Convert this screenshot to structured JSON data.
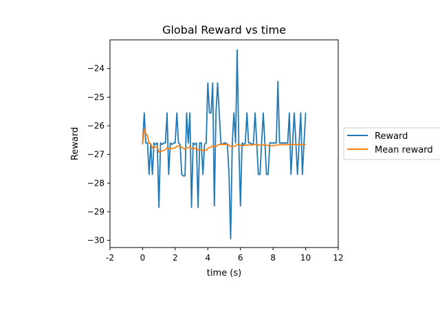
{
  "chart_data": {
    "type": "line",
    "title": "Global Reward vs time",
    "xlabel": "time (s)",
    "ylabel": "Reward",
    "xlim": [
      -2,
      12
    ],
    "ylim": [
      -30.25,
      -23.0
    ],
    "x_ticks": [
      -2,
      0,
      2,
      4,
      6,
      8,
      10,
      12
    ],
    "x_tick_labels": [
      "-2",
      "0",
      "2",
      "4",
      "6",
      "8",
      "10",
      "12"
    ],
    "y_ticks": [
      -30,
      -29,
      -28,
      -27,
      -26,
      -25,
      -24
    ],
    "y_tick_labels": [
      "−30",
      "−29",
      "−28",
      "−27",
      "−26",
      "−25",
      "−24"
    ],
    "grid": false,
    "legend_position": "right-outside",
    "series": [
      {
        "name": "Reward",
        "color": "#1f77b4",
        "x": [
          0.0,
          0.1,
          0.2,
          0.3,
          0.4,
          0.5,
          0.6,
          0.7,
          0.8,
          0.9,
          1.0,
          1.1,
          1.2,
          1.3,
          1.4,
          1.5,
          1.6,
          1.7,
          1.8,
          1.9,
          2.0,
          2.1,
          2.2,
          2.3,
          2.4,
          2.5,
          2.6,
          2.7,
          2.8,
          2.9,
          3.0,
          3.1,
          3.2,
          3.3,
          3.4,
          3.5,
          3.6,
          3.7,
          3.8,
          3.9,
          4.0,
          4.1,
          4.2,
          4.3,
          4.4,
          4.5,
          4.6,
          4.7,
          4.8,
          4.9,
          5.0,
          5.1,
          5.2,
          5.3,
          5.4,
          5.5,
          5.6,
          5.7,
          5.8,
          5.9,
          6.0,
          6.1,
          6.2,
          6.3,
          6.4,
          6.5,
          6.6,
          6.7,
          6.8,
          6.9,
          7.0,
          7.1,
          7.2,
          7.3,
          7.4,
          7.5,
          7.6,
          7.7,
          7.8,
          7.9,
          8.0,
          8.1,
          8.2,
          8.3,
          8.4,
          8.5,
          8.6,
          8.7,
          8.8,
          8.9,
          9.0,
          9.1,
          9.2,
          9.3,
          9.4,
          9.5,
          9.6,
          9.7,
          9.8,
          9.9,
          10.0
        ],
        "values": [
          -26.65,
          -25.55,
          -26.6,
          -26.6,
          -27.7,
          -26.65,
          -27.7,
          -26.6,
          -26.65,
          -26.6,
          -28.85,
          -26.6,
          -26.65,
          -26.6,
          -26.6,
          -25.55,
          -27.7,
          -26.6,
          -26.65,
          -26.6,
          -26.6,
          -25.55,
          -26.6,
          -26.65,
          -27.7,
          -27.75,
          -27.75,
          -25.55,
          -26.6,
          -25.55,
          -28.85,
          -26.6,
          -26.65,
          -26.6,
          -28.85,
          -26.6,
          -26.6,
          -27.7,
          -26.65,
          -26.6,
          -24.5,
          -25.55,
          -25.55,
          -24.5,
          -28.8,
          -25.55,
          -24.5,
          -25.55,
          -26.6,
          -26.65,
          -26.6,
          -26.6,
          -26.65,
          -27.7,
          -29.95,
          -26.6,
          -25.55,
          -26.6,
          -23.35,
          -26.6,
          -28.8,
          -26.6,
          -26.65,
          -26.6,
          -25.55,
          -26.6,
          -26.6,
          -26.65,
          -26.6,
          -25.55,
          -26.6,
          -27.7,
          -27.7,
          -26.6,
          -25.55,
          -26.6,
          -27.7,
          -27.7,
          -26.6,
          -26.6,
          -26.6,
          -26.6,
          -26.6,
          -24.45,
          -26.6,
          -26.6,
          -26.6,
          -26.6,
          -26.6,
          -26.6,
          -25.55,
          -27.7,
          -26.6,
          -25.55,
          -26.6,
          -27.7,
          -26.6,
          -25.55,
          -27.7,
          -26.6,
          -25.55
        ]
      },
      {
        "name": "Mean reward",
        "color": "#ff7f0e",
        "x": [
          0.0,
          0.1,
          0.2,
          0.3,
          0.4,
          0.5,
          0.6,
          0.7,
          0.8,
          0.9,
          1.0,
          1.1,
          1.2,
          1.3,
          1.4,
          1.5,
          1.6,
          1.7,
          1.8,
          1.9,
          2.0,
          2.1,
          2.2,
          2.3,
          2.4,
          2.5,
          2.6,
          2.7,
          2.8,
          2.9,
          3.0,
          3.1,
          3.2,
          3.3,
          3.4,
          3.5,
          3.6,
          3.7,
          3.8,
          3.9,
          4.0,
          4.1,
          4.2,
          4.3,
          4.4,
          4.5,
          4.6,
          4.7,
          4.8,
          4.9,
          5.0,
          5.1,
          5.2,
          5.3,
          5.4,
          5.5,
          5.6,
          5.7,
          5.8,
          5.9,
          6.0,
          6.1,
          6.2,
          6.3,
          6.4,
          6.5,
          6.6,
          6.7,
          6.8,
          6.9,
          7.0,
          7.1,
          7.2,
          7.3,
          7.4,
          7.5,
          7.6,
          7.7,
          7.8,
          7.9,
          8.0,
          8.1,
          8.2,
          8.3,
          8.4,
          8.5,
          8.6,
          8.7,
          8.8,
          8.9,
          9.0,
          9.1,
          9.2,
          9.3,
          9.4,
          9.5,
          9.6,
          9.7,
          9.8,
          9.9,
          10.0
        ],
        "values": [
          -26.65,
          -26.1,
          -26.27,
          -26.35,
          -26.61,
          -26.62,
          -26.77,
          -26.75,
          -26.74,
          -26.73,
          -26.92,
          -26.9,
          -26.88,
          -26.86,
          -26.84,
          -26.76,
          -26.81,
          -26.8,
          -26.79,
          -26.78,
          -26.77,
          -26.71,
          -26.71,
          -26.71,
          -26.75,
          -26.79,
          -26.83,
          -26.78,
          -26.77,
          -26.73,
          -26.8,
          -26.79,
          -26.79,
          -26.78,
          -26.85,
          -26.84,
          -26.84,
          -26.86,
          -26.86,
          -26.85,
          -26.79,
          -26.76,
          -26.74,
          -26.69,
          -26.74,
          -26.72,
          -26.67,
          -26.65,
          -26.65,
          -26.65,
          -26.65,
          -26.65,
          -26.65,
          -26.67,
          -26.73,
          -26.73,
          -26.71,
          -26.71,
          -26.65,
          -26.65,
          -26.69,
          -26.69,
          -26.69,
          -26.68,
          -26.67,
          -26.67,
          -26.67,
          -26.67,
          -26.67,
          -26.65,
          -26.65,
          -26.67,
          -26.68,
          -26.68,
          -26.66,
          -26.66,
          -26.68,
          -26.69,
          -26.69,
          -26.69,
          -26.69,
          -26.69,
          -26.68,
          -26.66,
          -26.66,
          -26.66,
          -26.66,
          -26.66,
          -26.66,
          -26.66,
          -26.65,
          -26.66,
          -26.66,
          -26.65,
          -26.65,
          -26.66,
          -26.66,
          -26.65,
          -26.66,
          -26.66,
          -26.65
        ]
      }
    ]
  }
}
